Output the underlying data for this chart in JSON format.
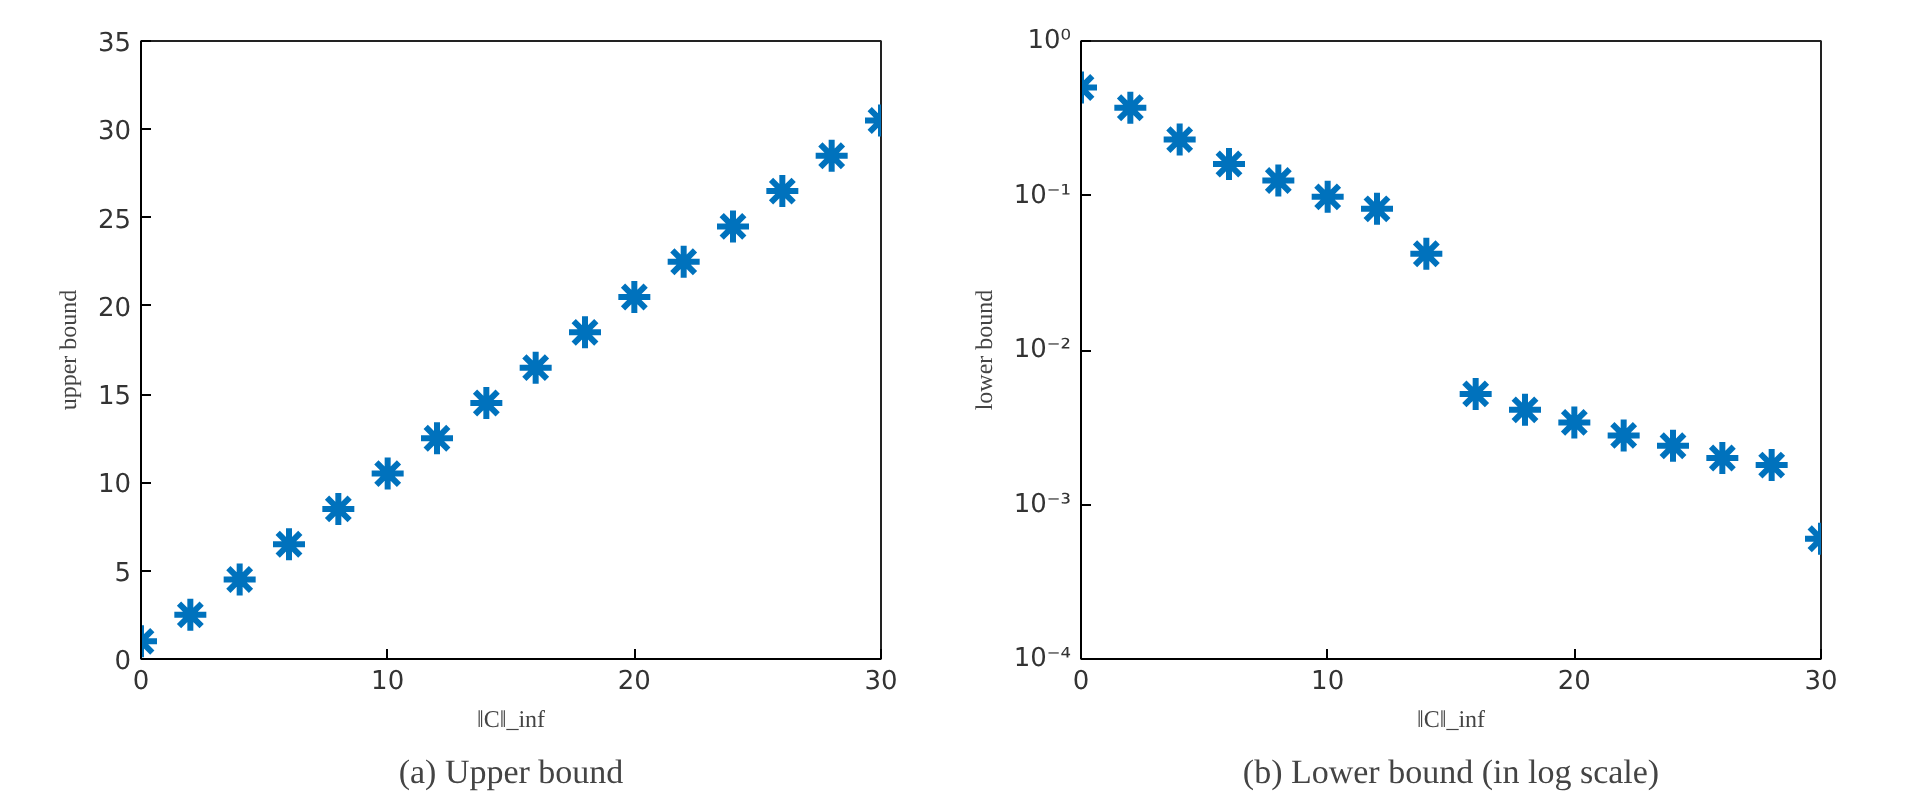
{
  "chart_data": [
    {
      "type": "scatter",
      "title": "(a) Upper bound",
      "xlabel": "‖C‖_inf",
      "ylabel": "upper bound",
      "marker": "cross",
      "grid": false,
      "x": [
        0,
        2,
        4,
        6,
        8,
        10,
        12,
        14,
        16,
        18,
        20,
        22,
        24,
        26,
        28,
        30
      ],
      "series": [
        {
          "color": "#0072bd",
          "values": [
            1,
            2.5,
            4.5,
            6.5,
            8.5,
            10.5,
            12.5,
            14.5,
            16.5,
            18.5,
            20.5,
            22.5,
            24.5,
            26.5,
            28.5,
            30.5
          ]
        }
      ],
      "xlim": [
        0,
        30
      ],
      "xticks": [
        0,
        10,
        20,
        30
      ],
      "ylim": [
        0,
        35
      ],
      "yticks": [
        0,
        5,
        10,
        15,
        20,
        25,
        30,
        35
      ]
    },
    {
      "type": "scatter",
      "title": "(b) Lower bound (in log scale)",
      "xlabel": "‖C‖_inf",
      "ylabel": "lower bound",
      "marker": "cross",
      "grid": false,
      "log": "y",
      "x": [
        0,
        2,
        4,
        6,
        8,
        10,
        12,
        14,
        16,
        18,
        20,
        22,
        24,
        26,
        28,
        30
      ],
      "series": [
        {
          "color": "#0072bd",
          "values": [
            0.5,
            0.37,
            0.23,
            0.16,
            0.125,
            0.098,
            0.082,
            0.042,
            0.0052,
            0.0041,
            0.0034,
            0.0028,
            0.0024,
            0.002,
            0.0018,
            0.0006
          ]
        }
      ],
      "xlim": [
        0,
        30
      ],
      "xticks": [
        0,
        10,
        20,
        30
      ],
      "ylim": [
        0.0001,
        1
      ],
      "yticks": [
        {
          "value": 0.0001,
          "label": "10⁻⁴"
        },
        {
          "value": 0.001,
          "label": "10⁻³"
        },
        {
          "value": 0.01,
          "label": "10⁻²"
        },
        {
          "value": 0.1,
          "label": "10⁻¹"
        },
        {
          "value": 1,
          "label": "10⁰"
        }
      ]
    }
  ]
}
